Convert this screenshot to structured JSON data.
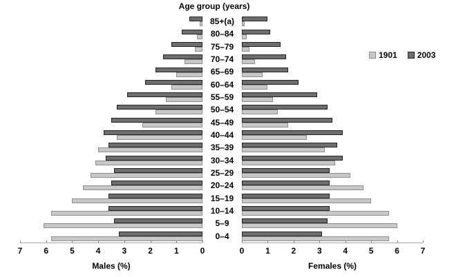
{
  "title": "Age group (years)",
  "legend": {
    "items": [
      {
        "label": "1901",
        "series_key": "1901"
      },
      {
        "label": "2003",
        "series_key": "2003"
      }
    ]
  },
  "axis": {
    "males_title": "Males (%)",
    "females_title": "Females (%)",
    "max": 7,
    "left_ticks": [
      7,
      6,
      5,
      4,
      3,
      2,
      1,
      0
    ],
    "right_ticks": [
      0,
      1,
      2,
      3,
      4,
      5,
      6,
      7
    ]
  },
  "colors": {
    "bar_1901": "#c8c8c8",
    "bar_1901_border": "#8f8f8f",
    "bar_2003": "#6e6e6e",
    "bar_2003_border": "#232323",
    "axis_line": "#a6a6a6",
    "tick": "#7f7f7f"
  },
  "chart_data": {
    "type": "bar",
    "subtype": "population_pyramid",
    "title": "Age group (years)",
    "unit": "% of total population",
    "xlabel_left": "Males (%)",
    "xlabel_right": "Females (%)",
    "xlim_each_side": [
      0,
      7
    ],
    "grid": false,
    "legend_position": "right",
    "categories_top_to_bottom": [
      "85+(a)",
      "80–84",
      "75–79",
      "70–74",
      "65–69",
      "60–64",
      "55–59",
      "50–54",
      "45–49",
      "40–44",
      "35–39",
      "30–34",
      "25–29",
      "20–24",
      "15–19",
      "10–14",
      "5–9",
      "0–4"
    ],
    "males": {
      "series": [
        {
          "name": "1901",
          "values": [
            0.1,
            0.2,
            0.3,
            0.7,
            1.0,
            1.2,
            1.4,
            1.8,
            2.3,
            3.3,
            4.0,
            4.1,
            4.3,
            4.6,
            5.0,
            5.8,
            6.1,
            5.8
          ]
        },
        {
          "name": "2003",
          "values": [
            0.5,
            0.8,
            1.2,
            1.5,
            1.8,
            2.2,
            2.9,
            3.3,
            3.5,
            3.8,
            3.6,
            3.7,
            3.4,
            3.5,
            3.6,
            3.6,
            3.4,
            3.2
          ]
        }
      ]
    },
    "females": {
      "series": [
        {
          "name": "1901",
          "values": [
            0.1,
            0.2,
            0.3,
            0.5,
            0.8,
            1.0,
            1.2,
            1.4,
            1.8,
            2.5,
            3.2,
            3.6,
            4.2,
            4.7,
            5.0,
            5.7,
            6.0,
            5.7
          ]
        },
        {
          "name": "2003",
          "values": [
            1.0,
            1.1,
            1.5,
            1.7,
            1.8,
            2.2,
            2.9,
            3.3,
            3.5,
            3.9,
            3.7,
            3.9,
            3.4,
            3.4,
            3.4,
            3.4,
            3.3,
            3.1
          ]
        }
      ]
    }
  }
}
